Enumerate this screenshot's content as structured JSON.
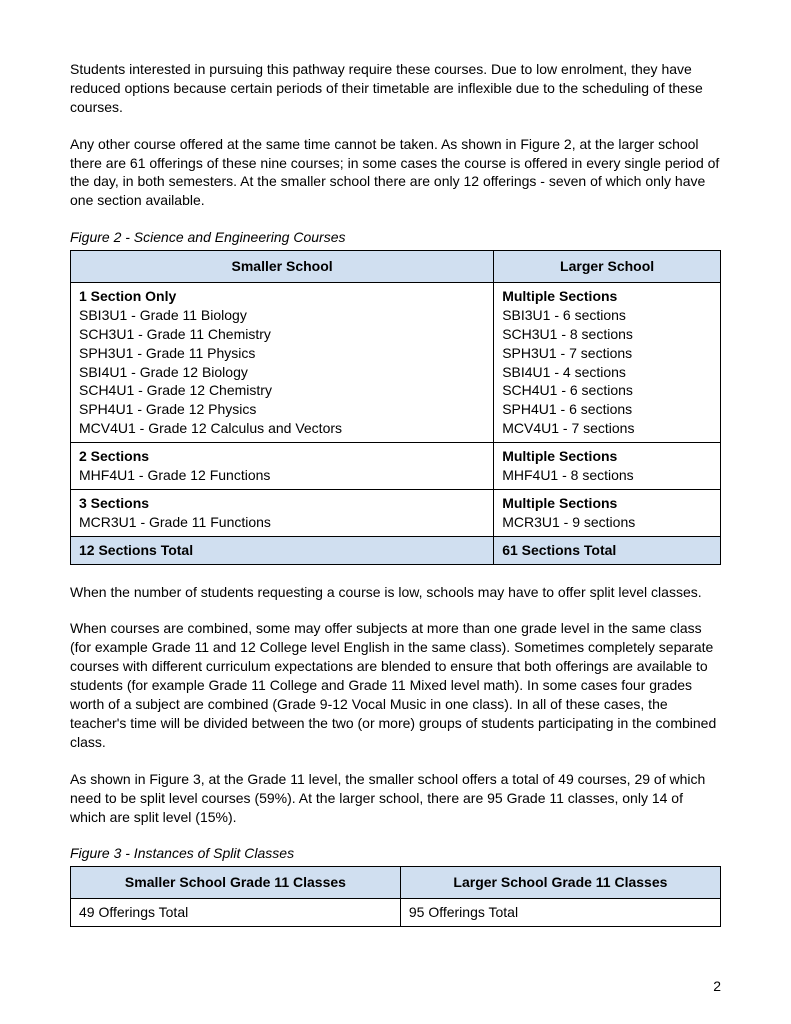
{
  "colors": {
    "header_bg": "#d0dff0",
    "border": "#000000",
    "text": "#000000",
    "page_bg": "#ffffff"
  },
  "typography": {
    "body_fontsize": 14,
    "caption_style": "italic",
    "font_family": "Arial"
  },
  "paragraphs": {
    "p1": "Students interested in pursuing this pathway require these courses.  Due to low enrolment, they have reduced options because certain periods of their timetable are inflexible due to the scheduling of these courses.",
    "p2": "Any other course offered at the same time cannot be taken. As shown in Figure 2, at the larger school there are 61 offerings of these nine courses; in some cases the course is offered in every single period of the day, in both semesters.  At the smaller school there are only 12 offerings - seven of which only have one section available.",
    "p3": "When the number of students requesting a course is low, schools may have to offer split level classes.",
    "p4": "When courses are combined, some may offer subjects at more than one grade level in the same class (for example Grade 11 and 12 College level English in the same class).  Sometimes completely separate courses with different curriculum expectations are blended to ensure that both offerings are available to students (for example Grade 11 College and Grade 11 Mixed level math).  In some cases four grades worth of a subject are combined (Grade 9-12 Vocal Music in one class).  In all of these cases, the teacher's time will be divided between the two (or more) groups of students participating in the combined class.",
    "p5": "As shown in Figure 3, at the Grade 11 level, the smaller school offers a total of 49 courses, 29 of which need to be split level courses (59%). At the larger school, there are 95 Grade 11 classes, only 14 of which are split level (15%)."
  },
  "figure2": {
    "caption": "Figure 2 - Science and Engineering Courses",
    "headers": {
      "left": "Smaller School",
      "right": "Larger School"
    },
    "rows": [
      {
        "left": {
          "heading": "1 Section Only",
          "lines": [
            "SBI3U1 - Grade 11 Biology",
            "SCH3U1 - Grade 11 Chemistry",
            "SPH3U1 - Grade 11 Physics",
            "SBI4U1 - Grade 12 Biology",
            "SCH4U1 - Grade 12 Chemistry",
            "SPH4U1 - Grade 12 Physics",
            "MCV4U1 - Grade 12 Calculus and Vectors"
          ]
        },
        "right": {
          "heading": "Multiple Sections",
          "lines": [
            "SBI3U1 - 6 sections",
            "SCH3U1 - 8 sections",
            "SPH3U1 - 7 sections",
            "SBI4U1 - 4 sections",
            "SCH4U1 - 6 sections",
            "SPH4U1 - 6 sections",
            "MCV4U1 - 7 sections"
          ]
        }
      },
      {
        "left": {
          "heading": "2 Sections",
          "lines": [
            "MHF4U1 - Grade 12 Functions"
          ]
        },
        "right": {
          "heading": "Multiple Sections",
          "lines": [
            "MHF4U1 - 8 sections"
          ]
        }
      },
      {
        "left": {
          "heading": "3 Sections",
          "lines": [
            "MCR3U1 - Grade 11 Functions"
          ]
        },
        "right": {
          "heading": "Multiple Sections",
          "lines": [
            "MCR3U1 - 9 sections"
          ]
        }
      }
    ],
    "totals": {
      "left": "12 Sections Total",
      "right": "61 Sections Total"
    }
  },
  "figure3": {
    "caption": "Figure 3 - Instances of Split Classes",
    "headers": {
      "left": "Smaller School Grade 11 Classes",
      "right": "Larger School Grade 11 Classes"
    },
    "rows": [
      {
        "left": "49 Offerings Total",
        "right": "95 Offerings Total"
      }
    ]
  },
  "page_number": "2"
}
